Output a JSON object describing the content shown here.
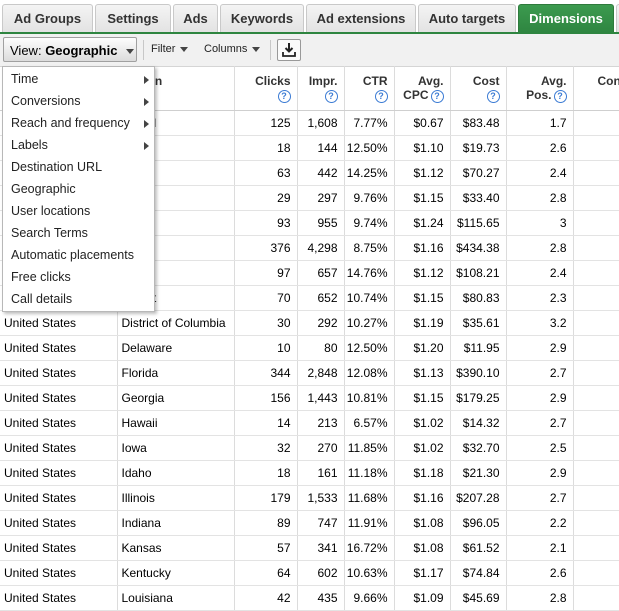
{
  "tabs": [
    "Ad Groups",
    "Settings",
    "Ads",
    "Keywords",
    "Ad extensions",
    "Auto targets",
    "Dimensions"
  ],
  "toolbar": {
    "view_prefix": "View:",
    "view_value": "Geographic",
    "filter": "Filter",
    "columns": "Columns"
  },
  "headers": {
    "country": "",
    "region": "on",
    "clicks": "Clicks",
    "impr": "Impr.",
    "ctr": "CTR",
    "avg_cpc_1": "Avg.",
    "avg_cpc_2": "CPC",
    "cost": "Cost",
    "avg_pos_1": "Avg.",
    "avg_pos_2": "Pos.",
    "conv": "Conv",
    "help": "?"
  },
  "rows": [
    [
      "",
      "ecified",
      "125",
      "1,608",
      "7.77%",
      "$0.67",
      "$83.48",
      "1.7"
    ],
    [
      "",
      "a",
      "18",
      "144",
      "12.50%",
      "$1.10",
      "$19.73",
      "2.6"
    ],
    [
      "",
      "ma",
      "63",
      "442",
      "14.25%",
      "$1.12",
      "$70.27",
      "2.4"
    ],
    [
      "",
      "sas",
      "29",
      "297",
      "9.76%",
      "$1.15",
      "$33.40",
      "2.8"
    ],
    [
      "",
      "a",
      "93",
      "955",
      "9.74%",
      "$1.24",
      "$115.65",
      "3"
    ],
    [
      "",
      "rnia",
      "376",
      "4,298",
      "8.75%",
      "$1.16",
      "$434.38",
      "2.8"
    ],
    [
      "",
      "ado",
      "97",
      "657",
      "14.76%",
      "$1.12",
      "$108.21",
      "2.4"
    ],
    [
      "",
      "ecticut",
      "70",
      "652",
      "10.74%",
      "$1.15",
      "$80.83",
      "2.3"
    ],
    [
      "United States",
      "District of Columbia",
      "30",
      "292",
      "10.27%",
      "$1.19",
      "$35.61",
      "3.2"
    ],
    [
      "United States",
      "Delaware",
      "10",
      "80",
      "12.50%",
      "$1.20",
      "$11.95",
      "2.9"
    ],
    [
      "United States",
      "Florida",
      "344",
      "2,848",
      "12.08%",
      "$1.13",
      "$390.10",
      "2.7"
    ],
    [
      "United States",
      "Georgia",
      "156",
      "1,443",
      "10.81%",
      "$1.15",
      "$179.25",
      "2.9"
    ],
    [
      "United States",
      "Hawaii",
      "14",
      "213",
      "6.57%",
      "$1.02",
      "$14.32",
      "2.7"
    ],
    [
      "United States",
      "Iowa",
      "32",
      "270",
      "11.85%",
      "$1.02",
      "$32.70",
      "2.5"
    ],
    [
      "United States",
      "Idaho",
      "18",
      "161",
      "11.18%",
      "$1.18",
      "$21.30",
      "2.9"
    ],
    [
      "United States",
      "Illinois",
      "179",
      "1,533",
      "11.68%",
      "$1.16",
      "$207.28",
      "2.7"
    ],
    [
      "United States",
      "Indiana",
      "89",
      "747",
      "11.91%",
      "$1.08",
      "$96.05",
      "2.2"
    ],
    [
      "United States",
      "Kansas",
      "57",
      "341",
      "16.72%",
      "$1.08",
      "$61.52",
      "2.1"
    ],
    [
      "United States",
      "Kentucky",
      "64",
      "602",
      "10.63%",
      "$1.17",
      "$74.84",
      "2.6"
    ],
    [
      "United States",
      "Louisiana",
      "42",
      "435",
      "9.66%",
      "$1.09",
      "$45.69",
      "2.8"
    ]
  ],
  "menu": [
    {
      "label": "Time",
      "submenu": true
    },
    {
      "label": "Conversions",
      "submenu": true
    },
    {
      "label": "Reach and frequency",
      "submenu": true
    },
    {
      "label": "Labels",
      "submenu": true
    },
    {
      "label": "Destination URL",
      "submenu": false
    },
    {
      "label": "Geographic",
      "submenu": false
    },
    {
      "label": "User locations",
      "submenu": false
    },
    {
      "label": "Search Terms",
      "submenu": false
    },
    {
      "label": "Automatic placements",
      "submenu": false
    },
    {
      "label": "Free clicks",
      "submenu": false
    },
    {
      "label": "Call details",
      "submenu": false
    }
  ],
  "colors": {
    "active_tab": "#2e8540",
    "help_icon": "#3b7bd4"
  },
  "icons": {
    "download": "download-icon",
    "help": "help-icon"
  }
}
